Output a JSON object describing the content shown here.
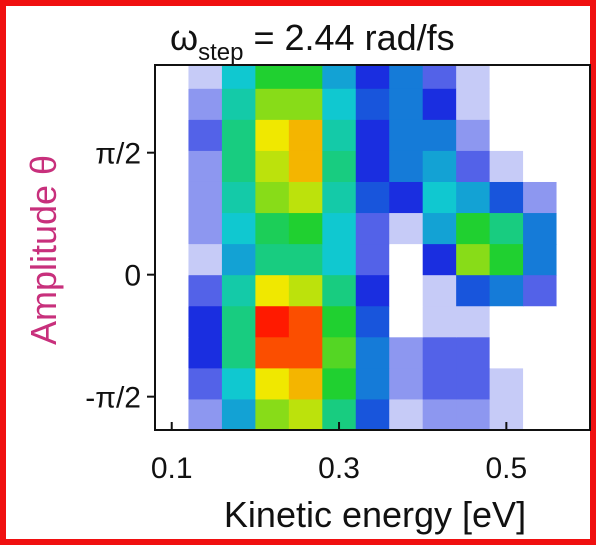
{
  "chart_data": {
    "type": "heatmap",
    "title": {
      "symbol": "ω",
      "subscript": "step",
      "text": "= 2.44 rad/fs"
    },
    "xlabel": "Kinetic energy [eV]",
    "ylabel": "Amplitude θ",
    "x": [
      0.1,
      0.14,
      0.18,
      0.22,
      0.26,
      0.3,
      0.34,
      0.38,
      0.42,
      0.46,
      0.5,
      0.54,
      0.58
    ],
    "y": [
      -1.8,
      -1.4,
      -1.0,
      -0.6,
      -0.2,
      0.2,
      0.6,
      1.0,
      1.4,
      1.8,
      2.2,
      2.6
    ],
    "z": [
      [
        0,
        0.1,
        0.35,
        0.7,
        0.75,
        0.5,
        0.25,
        0.05,
        0.1,
        0.1,
        0.05,
        0,
        0
      ],
      [
        0,
        0.15,
        0.4,
        0.8,
        0.85,
        0.6,
        0.3,
        0.1,
        0.15,
        0.15,
        0.05,
        0,
        0
      ],
      [
        0,
        0.2,
        0.5,
        0.95,
        0.95,
        0.65,
        0.3,
        0.1,
        0.15,
        0.15,
        0,
        0,
        0
      ],
      [
        0,
        0.2,
        0.5,
        1.0,
        0.95,
        0.6,
        0.25,
        0,
        0.05,
        0.05,
        0,
        0,
        0
      ],
      [
        0,
        0.15,
        0.45,
        0.8,
        0.75,
        0.5,
        0.2,
        0,
        0.05,
        0.25,
        0.3,
        0.15,
        0
      ],
      [
        0,
        0.05,
        0.35,
        0.5,
        0.5,
        0.4,
        0.15,
        0,
        0.2,
        0.7,
        0.6,
        0.3,
        0
      ],
      [
        0,
        0.1,
        0.4,
        0.55,
        0.6,
        0.4,
        0.15,
        0.05,
        0.35,
        0.6,
        0.5,
        0.3,
        0
      ],
      [
        0,
        0.1,
        0.45,
        0.7,
        0.75,
        0.45,
        0.25,
        0.2,
        0.4,
        0.35,
        0.25,
        0.1,
        0
      ],
      [
        0,
        0.1,
        0.5,
        0.75,
        0.85,
        0.5,
        0.2,
        0.3,
        0.35,
        0.15,
        0.05,
        0,
        0
      ],
      [
        0,
        0.15,
        0.5,
        0.8,
        0.85,
        0.45,
        0.2,
        0.3,
        0.3,
        0.1,
        0,
        0,
        0
      ],
      [
        0,
        0.1,
        0.45,
        0.7,
        0.7,
        0.4,
        0.25,
        0.3,
        0.2,
        0.05,
        0,
        0,
        0
      ],
      [
        0,
        0.05,
        0.4,
        0.6,
        0.6,
        0.35,
        0.2,
        0.3,
        0.15,
        0.05,
        0,
        0,
        0
      ]
    ],
    "zlim": [
      0,
      1
    ],
    "colormap": [
      "#ffffff",
      "#1a2ee0",
      "#10c8d0",
      "#20d030",
      "#f0e800",
      "#ff1a00"
    ],
    "xlim": [
      0.08,
      0.6
    ],
    "xticks": [
      0.1,
      0.3,
      0.5
    ],
    "ylim": [
      -2.0,
      2.7
    ],
    "yticks": [
      {
        "value": -1.5708,
        "label": "-π/2"
      },
      0,
      {
        "value": 1.5708,
        "label": "π/2"
      }
    ]
  }
}
